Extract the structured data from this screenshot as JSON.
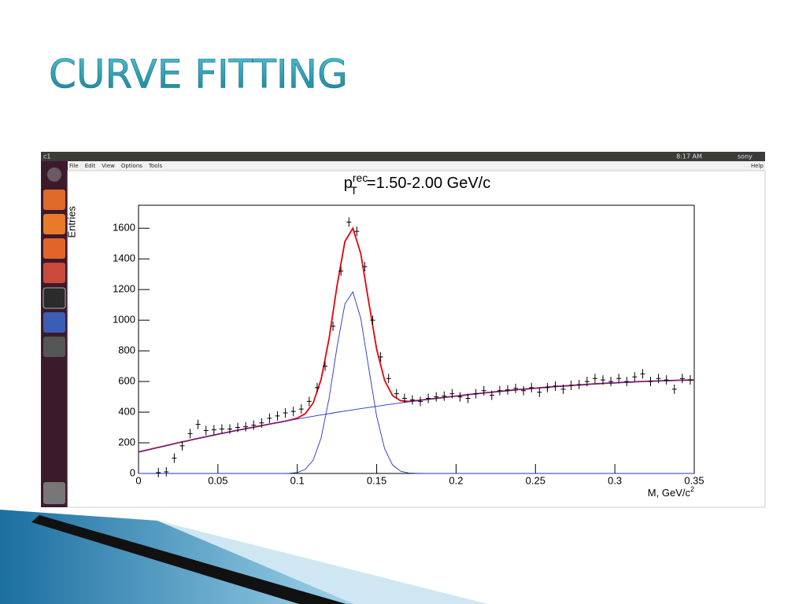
{
  "slide_title": "CURVE FITTING",
  "window": {
    "title": "c1",
    "clock": "8:17 AM",
    "user": "sony",
    "menu": [
      "File",
      "Edit",
      "View",
      "Options",
      "Tools"
    ],
    "help": "Help"
  },
  "chart_data": {
    "type": "scatter",
    "title": {
      "base": "p",
      "sup": "rec",
      "sub": "T",
      "rest": "=1.50-2.00 GeV/c"
    },
    "x_label": {
      "base": "M, GeV/c",
      "sup": "2"
    },
    "y_label": "Entries",
    "xlim": [
      0,
      0.35
    ],
    "ylim": [
      0,
      1750
    ],
    "xticks": [
      0,
      0.05,
      0.1,
      0.15,
      0.2,
      0.25,
      0.3,
      0.35
    ],
    "yticks": [
      0,
      200,
      400,
      600,
      800,
      1000,
      1200,
      1400,
      1600
    ],
    "grid": false,
    "series": [
      {
        "type": "scatter",
        "color": "#000000",
        "x": [
          0.0125,
          0.0175,
          0.0225,
          0.0275,
          0.0325,
          0.0375,
          0.0425,
          0.0475,
          0.0525,
          0.0575,
          0.0625,
          0.0675,
          0.0725,
          0.0775,
          0.0825,
          0.0875,
          0.0925,
          0.0975,
          0.1025,
          0.1075,
          0.1125,
          0.1175,
          0.1225,
          0.1275,
          0.1325,
          0.1375,
          0.1425,
          0.1475,
          0.1525,
          0.1575,
          0.1625,
          0.1675,
          0.1725,
          0.1775,
          0.1825,
          0.1875,
          0.1925,
          0.1975,
          0.2025,
          0.2075,
          0.2125,
          0.2175,
          0.2225,
          0.2275,
          0.2325,
          0.2375,
          0.2425,
          0.2475,
          0.2525,
          0.2575,
          0.2625,
          0.2675,
          0.2725,
          0.2775,
          0.2825,
          0.2875,
          0.2925,
          0.2975,
          0.3025,
          0.3075,
          0.3125,
          0.3175,
          0.3225,
          0.3275,
          0.3325,
          0.3375,
          0.3425,
          0.3475
        ],
        "values": [
          5,
          10,
          100,
          180,
          260,
          320,
          280,
          285,
          290,
          290,
          300,
          305,
          315,
          330,
          360,
          375,
          395,
          405,
          420,
          470,
          560,
          700,
          960,
          1320,
          1640,
          1580,
          1350,
          1000,
          760,
          620,
          520,
          490,
          480,
          470,
          490,
          500,
          505,
          520,
          500,
          490,
          520,
          540,
          510,
          540,
          545,
          555,
          540,
          560,
          530,
          560,
          570,
          550,
          575,
          580,
          600,
          620,
          610,
          600,
          620,
          600,
          630,
          650,
          600,
          620,
          610,
          550,
          620,
          610
        ]
      },
      {
        "type": "line",
        "color": "#e8000b",
        "x": [
          0,
          0.005,
          0.01,
          0.015,
          0.02,
          0.025,
          0.03,
          0.035,
          0.04,
          0.045,
          0.05,
          0.055,
          0.06,
          0.065,
          0.07,
          0.075,
          0.08,
          0.085,
          0.09,
          0.095,
          0.1,
          0.105,
          0.11,
          0.115,
          0.12,
          0.125,
          0.13,
          0.135,
          0.14,
          0.145,
          0.15,
          0.155,
          0.16,
          0.165,
          0.17,
          0.175,
          0.18,
          0.185,
          0.19,
          0.195,
          0.2,
          0.205,
          0.21,
          0.215,
          0.22,
          0.225,
          0.23,
          0.235,
          0.24,
          0.245,
          0.25,
          0.255,
          0.26,
          0.265,
          0.27,
          0.275,
          0.28,
          0.285,
          0.29,
          0.295,
          0.3,
          0.305,
          0.31,
          0.315,
          0.32,
          0.325,
          0.33,
          0.335,
          0.34,
          0.345,
          0.35
        ],
        "values": [
          140,
          152,
          164,
          176,
          188,
          200,
          211,
          223,
          234,
          245,
          256,
          266,
          277,
          287,
          297,
          307,
          317,
          327,
          336,
          347,
          361,
          390,
          460,
          614,
          879,
          1223,
          1514,
          1600,
          1434,
          1118,
          810,
          607,
          508,
          475,
          470,
          475,
          481,
          487,
          493,
          499,
          505,
          511,
          517,
          522,
          528,
          533,
          538,
          543,
          548,
          552,
          556,
          561,
          565,
          569,
          572,
          576,
          579,
          583,
          586,
          589,
          591,
          594,
          596,
          599,
          601,
          603,
          605,
          606,
          608,
          609,
          610
        ]
      },
      {
        "type": "line",
        "color": "#2233cc",
        "x": [
          0,
          0.005,
          0.01,
          0.015,
          0.02,
          0.025,
          0.03,
          0.035,
          0.04,
          0.045,
          0.05,
          0.055,
          0.06,
          0.065,
          0.07,
          0.075,
          0.08,
          0.085,
          0.09,
          0.095,
          0.1,
          0.105,
          0.11,
          0.115,
          0.12,
          0.125,
          0.13,
          0.135,
          0.14,
          0.145,
          0.15,
          0.155,
          0.16,
          0.165,
          0.17,
          0.175,
          0.18,
          0.185,
          0.19,
          0.195,
          0.2,
          0.205,
          0.21,
          0.215,
          0.22,
          0.225,
          0.23,
          0.235,
          0.24,
          0.245,
          0.25,
          0.255,
          0.26,
          0.265,
          0.27,
          0.275,
          0.28,
          0.285,
          0.29,
          0.295,
          0.3,
          0.305,
          0.31,
          0.315,
          0.32,
          0.325,
          0.33,
          0.335,
          0.34,
          0.345,
          0.35
        ],
        "values": [
          140,
          152,
          164,
          176,
          188,
          200,
          211,
          223,
          234,
          245,
          256,
          266,
          277,
          287,
          297,
          307,
          317,
          327,
          336,
          346,
          355,
          364,
          373,
          382,
          390,
          399,
          407,
          415,
          423,
          431,
          438,
          446,
          453,
          460,
          467,
          474,
          481,
          487,
          493,
          499,
          505,
          511,
          517,
          522,
          528,
          533,
          538,
          543,
          548,
          552,
          556,
          561,
          565,
          569,
          572,
          576,
          579,
          583,
          586,
          589,
          591,
          594,
          596,
          599,
          601,
          603,
          605,
          606,
          608,
          609,
          610
        ]
      },
      {
        "type": "line",
        "color": "#2233cc",
        "x": [
          0,
          0.005,
          0.01,
          0.015,
          0.02,
          0.025,
          0.03,
          0.035,
          0.04,
          0.045,
          0.05,
          0.055,
          0.06,
          0.065,
          0.07,
          0.075,
          0.08,
          0.085,
          0.09,
          0.095,
          0.1,
          0.105,
          0.11,
          0.115,
          0.12,
          0.125,
          0.13,
          0.135,
          0.14,
          0.145,
          0.15,
          0.155,
          0.16,
          0.165,
          0.17,
          0.175,
          0.18,
          0.185,
          0.19,
          0.195,
          0.2,
          0.205,
          0.21,
          0.215,
          0.22,
          0.225,
          0.23,
          0.235,
          0.24,
          0.245,
          0.25,
          0.255,
          0.26,
          0.265,
          0.27,
          0.275,
          0.28,
          0.285,
          0.29,
          0.295,
          0.3,
          0.305,
          0.31,
          0.315,
          0.32,
          0.325,
          0.33,
          0.335,
          0.34,
          0.345,
          0.35
        ],
        "values": [
          0,
          0,
          0,
          0,
          0,
          0,
          0,
          0,
          0,
          0,
          0,
          0,
          0,
          0,
          0,
          0,
          0,
          0,
          0,
          1,
          6,
          26,
          87,
          232,
          489,
          824,
          1107,
          1185,
          1011,
          687,
          372,
          161,
          55,
          15,
          3,
          1,
          0,
          0,
          0,
          0,
          0,
          0,
          0,
          0,
          0,
          0,
          0,
          0,
          0,
          0,
          0,
          0,
          0,
          0,
          0,
          0,
          0,
          0,
          0,
          0,
          0,
          0,
          0,
          0,
          0,
          0,
          0,
          0,
          0,
          0,
          0
        ]
      }
    ]
  }
}
